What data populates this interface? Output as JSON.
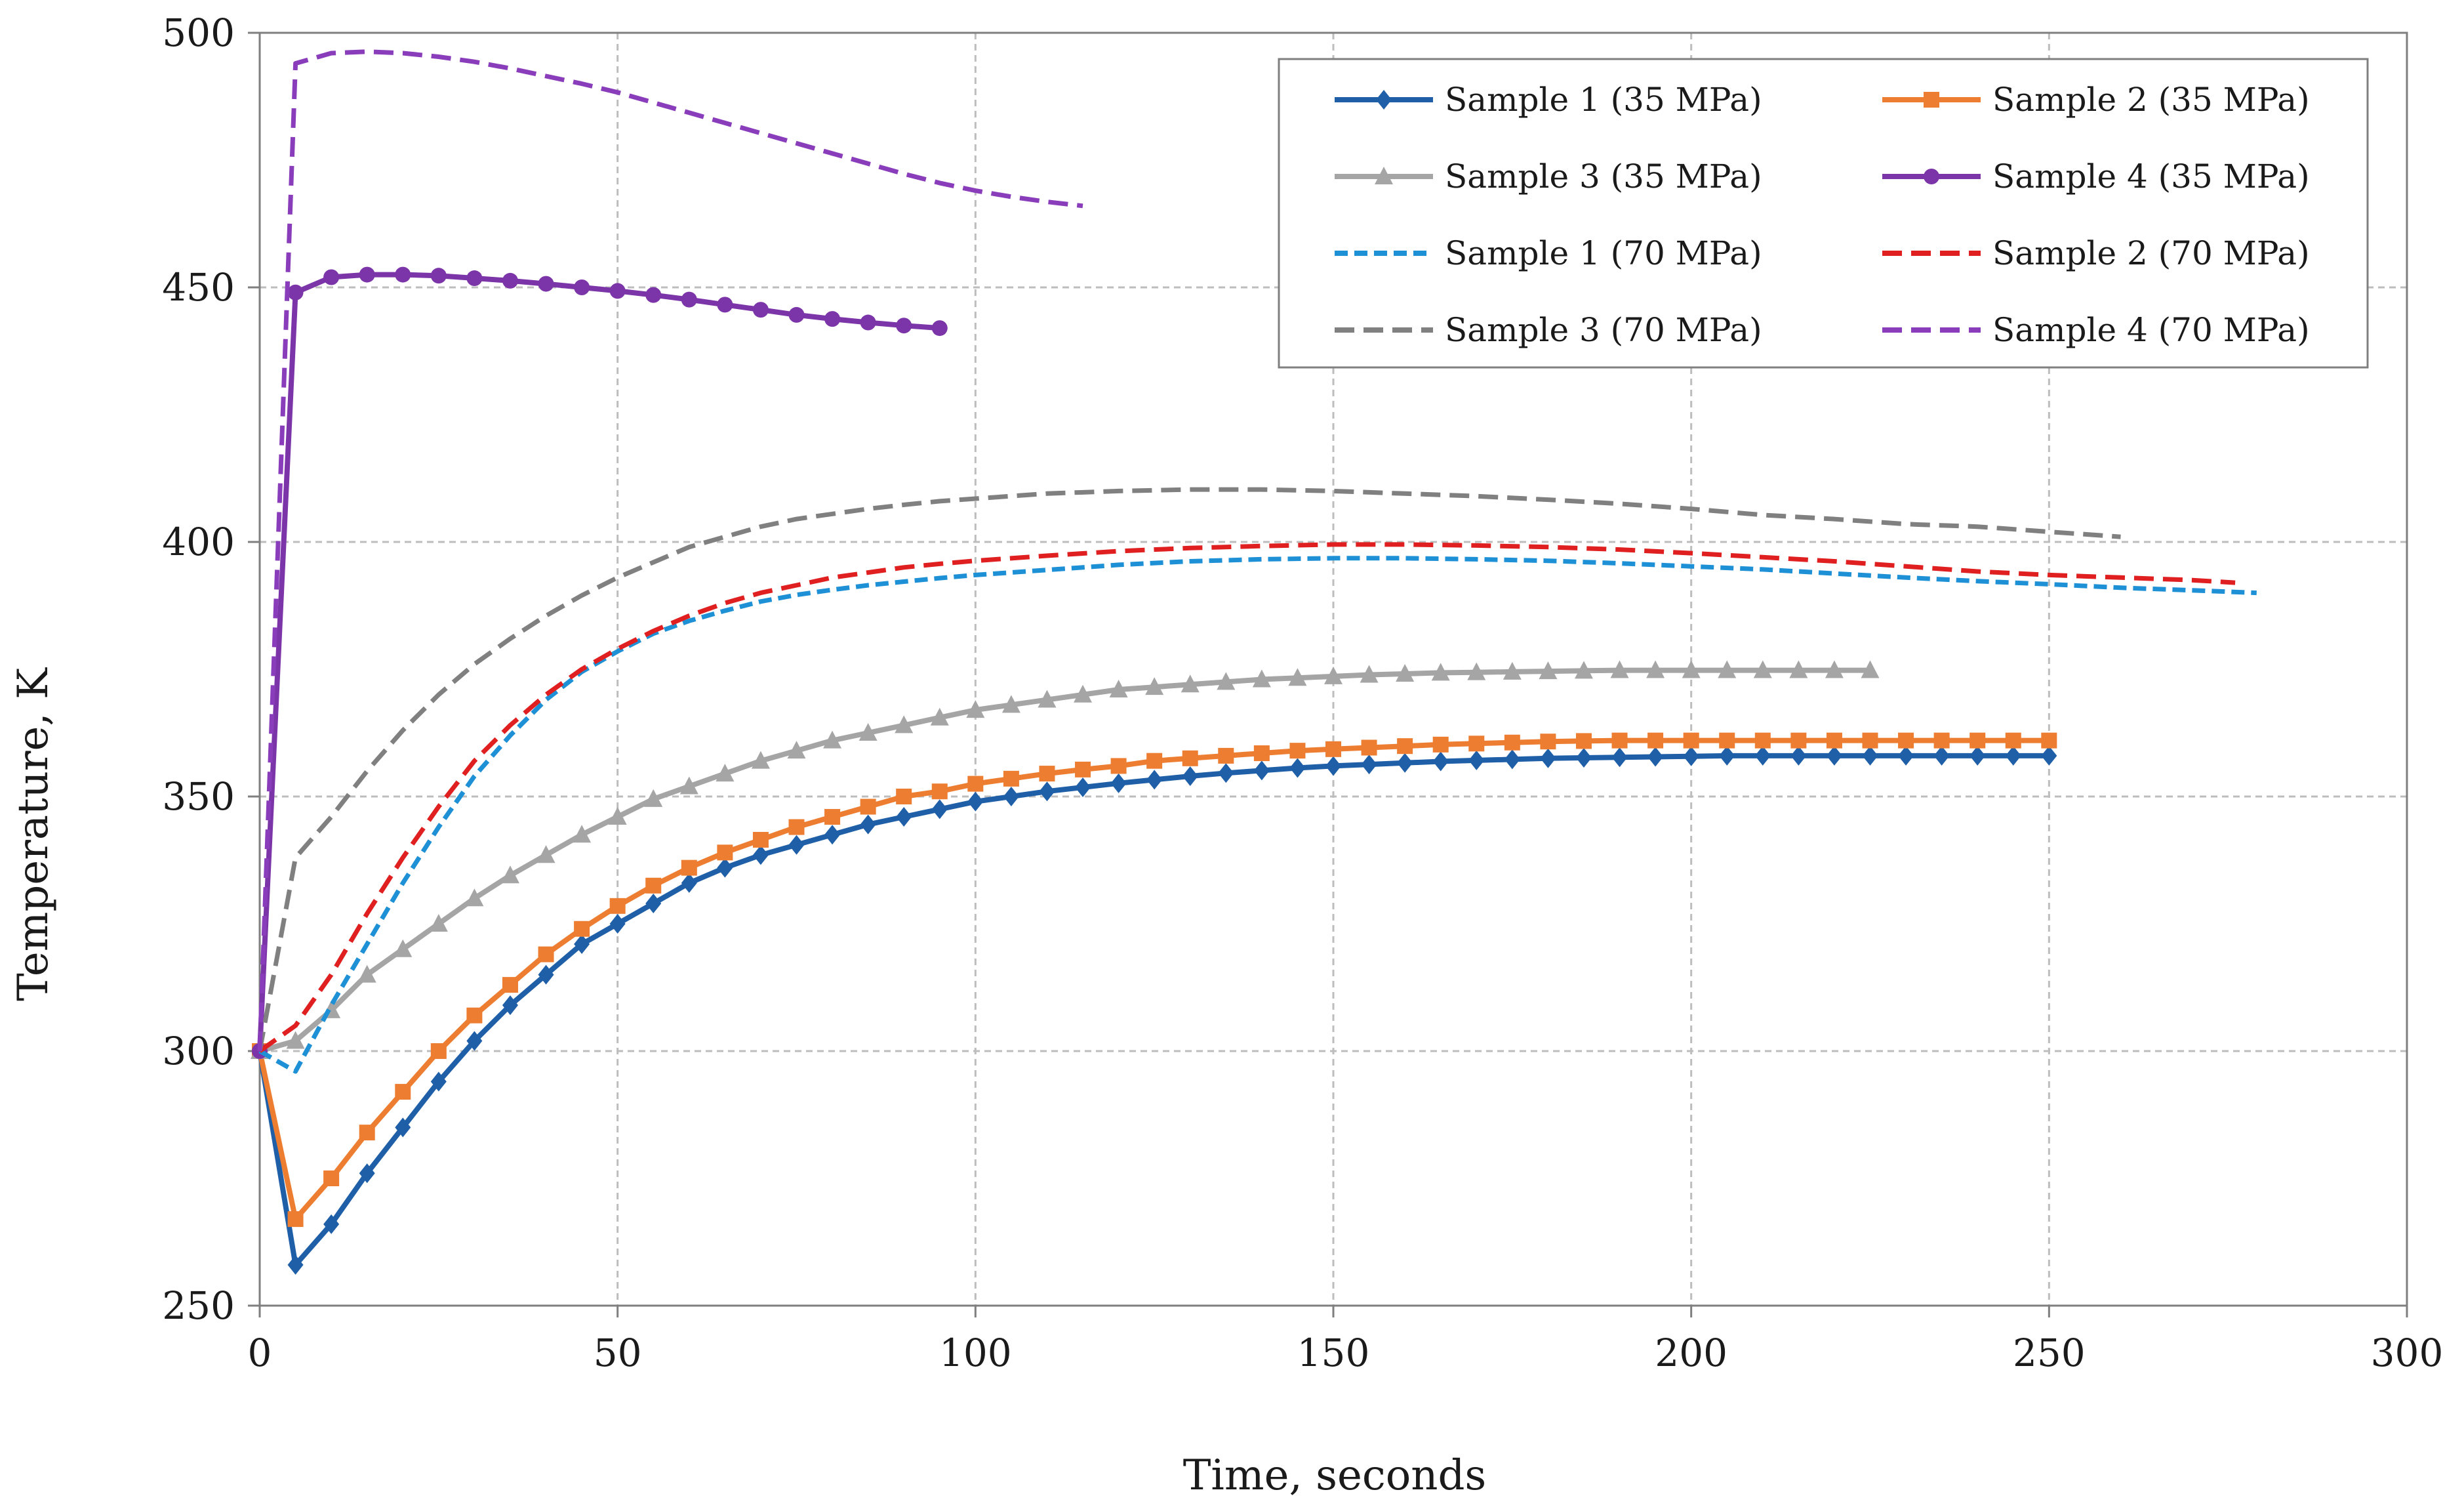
{
  "chart_data": {
    "type": "line",
    "title": "",
    "xlabel": "Time, seconds",
    "ylabel": "Temperature, K",
    "xlim": [
      0,
      300
    ],
    "ylim": [
      250,
      500
    ],
    "xticks": [
      0,
      50,
      100,
      150,
      200,
      250,
      300
    ],
    "yticks": [
      250,
      300,
      350,
      400,
      450,
      500
    ],
    "grid": true,
    "legend_position": "top-right",
    "series": [
      {
        "name": "Sample 1 (35 MPa)",
        "color": "#1f5fa8",
        "style": "solid",
        "marker": "diamond",
        "x": [
          0,
          5,
          10,
          15,
          20,
          25,
          30,
          35,
          40,
          45,
          50,
          55,
          60,
          65,
          70,
          75,
          80,
          85,
          90,
          95,
          100,
          105,
          110,
          115,
          120,
          125,
          130,
          135,
          140,
          145,
          150,
          155,
          160,
          165,
          170,
          175,
          180,
          185,
          190,
          195,
          200,
          205,
          210,
          215,
          220,
          225,
          230,
          235,
          240,
          245,
          250
        ],
        "y": [
          300,
          258,
          266,
          276,
          285,
          294,
          302,
          309,
          315,
          321,
          325,
          329,
          333,
          336,
          338.5,
          340.5,
          342.5,
          344.5,
          346,
          347.5,
          349,
          350,
          351,
          351.8,
          352.6,
          353.3,
          354,
          354.6,
          355.1,
          355.6,
          356,
          356.3,
          356.6,
          356.9,
          357.1,
          357.3,
          357.5,
          357.6,
          357.7,
          357.8,
          357.9,
          358,
          358,
          358,
          358,
          358,
          358,
          358,
          358,
          358,
          358
        ]
      },
      {
        "name": "Sample 2 (35 MPa)",
        "color": "#ed7d31",
        "style": "solid",
        "marker": "square",
        "x": [
          0,
          5,
          10,
          15,
          20,
          25,
          30,
          35,
          40,
          45,
          50,
          55,
          60,
          65,
          70,
          75,
          80,
          85,
          90,
          95,
          100,
          105,
          110,
          115,
          120,
          125,
          130,
          135,
          140,
          145,
          150,
          155,
          160,
          165,
          170,
          175,
          180,
          185,
          190,
          195,
          200,
          205,
          210,
          215,
          220,
          225,
          230,
          235,
          240,
          245,
          250
        ],
        "y": [
          300,
          267,
          275,
          284,
          292,
          300,
          307,
          313,
          319,
          324,
          328.5,
          332.5,
          336,
          339,
          341.5,
          344,
          346,
          348,
          350,
          351,
          352.5,
          353.5,
          354.5,
          355.3,
          356,
          357,
          357.5,
          358,
          358.5,
          359,
          359.3,
          359.6,
          359.9,
          360.2,
          360.4,
          360.6,
          360.8,
          360.9,
          361,
          361,
          361,
          361,
          361,
          361,
          361,
          361,
          361,
          361,
          361,
          361,
          361
        ]
      },
      {
        "name": "Sample 3 (35 MPa)",
        "color": "#a5a5a5",
        "style": "solid",
        "marker": "triangle",
        "x": [
          0,
          5,
          10,
          15,
          20,
          25,
          30,
          35,
          40,
          45,
          50,
          55,
          60,
          65,
          70,
          75,
          80,
          85,
          90,
          95,
          100,
          105,
          110,
          115,
          120,
          125,
          130,
          135,
          140,
          145,
          150,
          155,
          160,
          165,
          170,
          175,
          180,
          185,
          190,
          195,
          200,
          205,
          210,
          215,
          220,
          225
        ],
        "y": [
          300,
          302,
          308,
          315,
          320,
          325,
          330,
          334.5,
          338.5,
          342.5,
          346,
          349.5,
          352,
          354.5,
          357,
          359,
          361,
          362.5,
          364,
          365.5,
          367,
          368,
          369,
          370,
          371,
          371.5,
          372,
          372.5,
          373,
          373.3,
          373.6,
          373.9,
          374.1,
          374.3,
          374.4,
          374.5,
          374.6,
          374.7,
          374.8,
          374.8,
          374.8,
          374.8,
          374.8,
          374.8,
          374.8,
          374.8
        ]
      },
      {
        "name": "Sample 4 (35 MPa)",
        "color": "#7b35a8",
        "style": "solid",
        "marker": "circle",
        "x": [
          0,
          5,
          10,
          15,
          20,
          25,
          30,
          35,
          40,
          45,
          50,
          55,
          60,
          65,
          70,
          75,
          80,
          85,
          90,
          95
        ],
        "y": [
          300,
          449,
          452,
          452.5,
          452.5,
          452.3,
          451.8,
          451.3,
          450.7,
          450,
          449.3,
          448.5,
          447.6,
          446.6,
          445.6,
          444.6,
          443.8,
          443.1,
          442.5,
          442
        ]
      },
      {
        "name": "Sample 1 (70 MPa)",
        "color": "#1e90d6",
        "style": "dotted",
        "marker": "none",
        "x": [
          0,
          5,
          10,
          15,
          20,
          25,
          30,
          35,
          40,
          45,
          50,
          55,
          60,
          65,
          70,
          75,
          80,
          85,
          90,
          95,
          100,
          110,
          120,
          130,
          140,
          150,
          160,
          170,
          180,
          190,
          200,
          210,
          220,
          230,
          240,
          250,
          260,
          270,
          279
        ],
        "y": [
          300,
          296,
          309,
          321,
          333,
          344,
          354,
          362,
          369,
          374.5,
          378.5,
          382,
          384.5,
          386.5,
          388.3,
          389.6,
          390.6,
          391.5,
          392.2,
          392.9,
          393.5,
          394.5,
          395.5,
          396.2,
          396.6,
          396.8,
          396.8,
          396.6,
          396.3,
          395.8,
          395.2,
          394.6,
          393.8,
          393,
          392.3,
          391.7,
          391,
          390.5,
          390
        ]
      },
      {
        "name": "Sample 2 (70 MPa)",
        "color": "#e02020",
        "style": "dashed",
        "marker": "none",
        "x": [
          0,
          5,
          10,
          15,
          20,
          25,
          30,
          35,
          40,
          45,
          50,
          55,
          60,
          65,
          70,
          75,
          80,
          85,
          90,
          95,
          100,
          110,
          120,
          130,
          140,
          150,
          160,
          170,
          180,
          190,
          200,
          210,
          220,
          230,
          240,
          250,
          260,
          270,
          276
        ],
        "y": [
          300,
          305,
          315,
          327,
          338,
          348,
          357,
          364,
          370,
          375,
          379,
          382.5,
          385.5,
          388,
          390,
          391.5,
          393,
          394,
          395,
          395.7,
          396.3,
          397.3,
          398.2,
          398.8,
          399.2,
          399.5,
          399.5,
          399.3,
          399,
          398.5,
          397.8,
          397,
          396.2,
          395.2,
          394.2,
          393.5,
          393,
          392.5,
          392
        ]
      },
      {
        "name": "Sample 3 (70 MPa)",
        "color": "#808080",
        "style": "dashed",
        "marker": "none",
        "x": [
          0,
          5,
          10,
          15,
          20,
          25,
          30,
          35,
          40,
          45,
          50,
          55,
          60,
          65,
          70,
          75,
          80,
          85,
          90,
          95,
          100,
          110,
          120,
          130,
          140,
          150,
          160,
          170,
          180,
          190,
          200,
          210,
          220,
          230,
          240,
          250,
          260
        ],
        "y": [
          300,
          338,
          346,
          355,
          363,
          370,
          376,
          381,
          385.5,
          389.5,
          393,
          396,
          399,
          401,
          403,
          404.5,
          405.5,
          406.5,
          407.3,
          408,
          408.5,
          409.5,
          410,
          410.3,
          410.3,
          410,
          409.5,
          409,
          408.3,
          407.5,
          406.5,
          405.3,
          404.5,
          403.5,
          403,
          402,
          401
        ]
      },
      {
        "name": "Sample 4 (70 MPa)",
        "color": "#8a3dbb",
        "style": "dashed",
        "marker": "none",
        "x": [
          0,
          5,
          10,
          15,
          20,
          25,
          30,
          35,
          40,
          45,
          50,
          55,
          60,
          65,
          70,
          75,
          80,
          85,
          90,
          95,
          100,
          105,
          110,
          115
        ],
        "y": [
          300,
          494,
          496,
          496.3,
          496,
          495.3,
          494.3,
          493,
          491.5,
          490,
          488.3,
          486.3,
          484.3,
          482.3,
          480.3,
          478.3,
          476.3,
          474.3,
          472.3,
          470.5,
          469,
          467.8,
          466.8,
          466
        ]
      }
    ]
  }
}
